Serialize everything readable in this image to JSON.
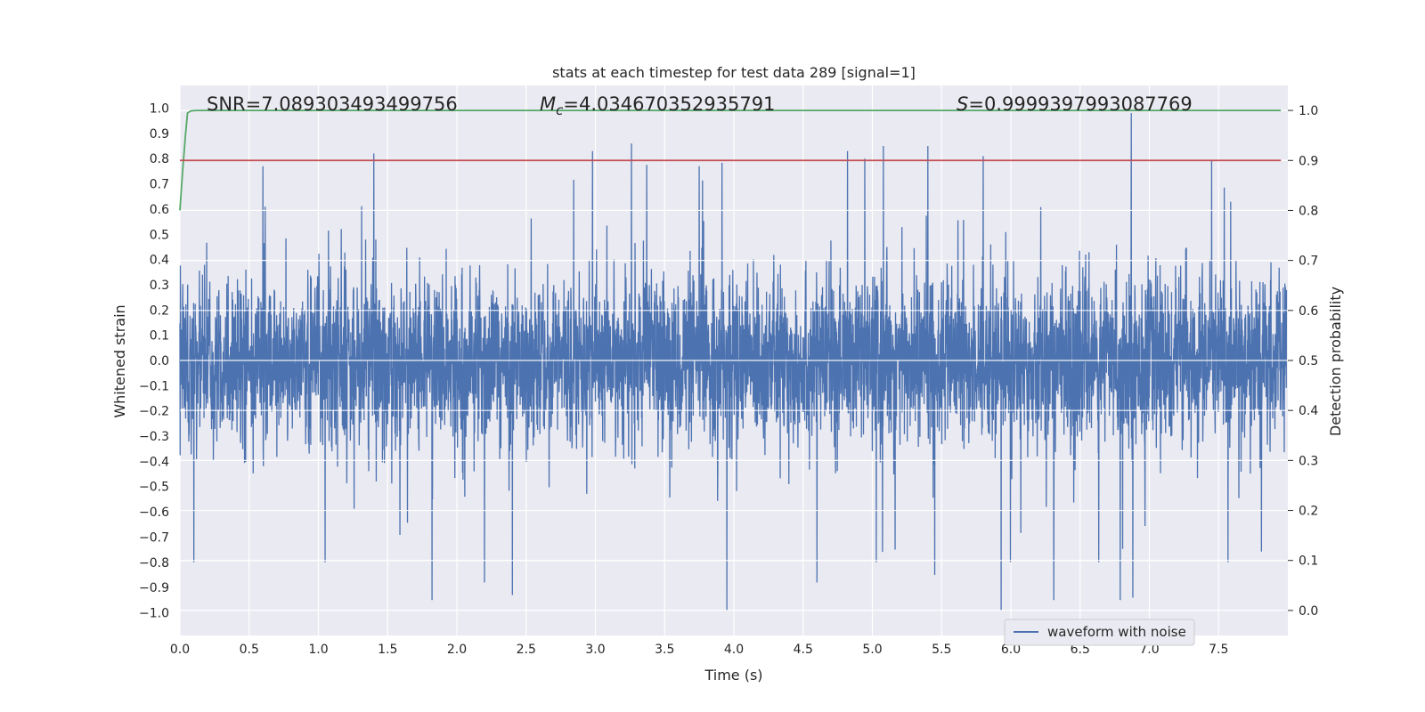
{
  "chart_data": {
    "type": "line",
    "title": "stats at each timestep for test data 289 [signal=1]",
    "xlabel": "Time (s)",
    "ylabel": "Whitened strain",
    "y2label": "Detection probability",
    "xlim": [
      0.0,
      8.0
    ],
    "ylim": [
      -1.09,
      1.09
    ],
    "y2lim": [
      -0.05,
      1.05
    ],
    "x_ticks": [
      0.0,
      0.5,
      1.0,
      1.5,
      2.0,
      2.5,
      3.0,
      3.5,
      4.0,
      4.5,
      5.0,
      5.5,
      6.0,
      6.5,
      7.0,
      7.5
    ],
    "x_tick_labels": [
      "0.0",
      "0.5",
      "1.0",
      "1.5",
      "2.0",
      "2.5",
      "3.0",
      "3.5",
      "4.0",
      "4.5",
      "5.0",
      "5.5",
      "6.0",
      "6.5",
      "7.0",
      "7.5"
    ],
    "y_ticks": [
      1.0,
      0.9,
      0.8,
      0.7,
      0.6,
      0.5,
      0.4,
      0.3,
      0.2,
      0.1,
      0.0,
      -0.1,
      -0.2,
      -0.3,
      -0.4,
      -0.5,
      -0.6,
      -0.7,
      -0.8,
      -0.9,
      -1.0
    ],
    "y_tick_labels": [
      "1.0",
      "0.9",
      "0.8",
      "0.7",
      "0.6",
      "0.5",
      "0.4",
      "0.3",
      "0.2",
      "0.1",
      "0.0",
      "−0.1",
      "−0.2",
      "−0.3",
      "−0.4",
      "−0.5",
      "−0.6",
      "−0.7",
      "−0.8",
      "−0.9",
      "−1.0"
    ],
    "y2_ticks": [
      1.0,
      0.9,
      0.8,
      0.7,
      0.6,
      0.5,
      0.4,
      0.3,
      0.2,
      0.1,
      0.0
    ],
    "y2_tick_labels": [
      "1.0",
      "0.9",
      "0.8",
      "0.7",
      "0.6",
      "0.5",
      "0.4",
      "0.3",
      "0.2",
      "0.1",
      "0.0"
    ],
    "grid": true,
    "legend": {
      "position": "lower-right",
      "entries": [
        "waveform with noise"
      ]
    },
    "annotations": {
      "snr": "SNR=7.089303493499756",
      "mc_symbol": "M",
      "mc_sub": "c",
      "mc_value": "=4.034670352935791",
      "s_symbol": "S",
      "s_value": "=0.9999397993087769"
    },
    "series": [
      {
        "name": "waveform with noise",
        "axis": "left",
        "color": "#4c72b0",
        "x_range": [
          0.0,
          7.99
        ],
        "typical_envelope": [
          -0.45,
          0.45
        ],
        "noise_std": 0.16,
        "peaks": [
          {
            "x": 1.4,
            "y": 0.82
          },
          {
            "x": 2.98,
            "y": 0.83
          },
          {
            "x": 3.26,
            "y": 0.86
          },
          {
            "x": 4.82,
            "y": 0.83
          },
          {
            "x": 5.08,
            "y": 0.85
          },
          {
            "x": 5.4,
            "y": 0.85
          },
          {
            "x": 5.8,
            "y": 0.81
          },
          {
            "x": 6.87,
            "y": 0.98
          },
          {
            "x": 7.45,
            "y": 0.79
          },
          {
            "x": 0.6,
            "y": 0.77
          },
          {
            "x": 3.75,
            "y": 0.77
          },
          {
            "x": 1.82,
            "y": -0.95
          },
          {
            "x": 2.4,
            "y": -0.93
          },
          {
            "x": 3.95,
            "y": -0.99
          },
          {
            "x": 5.93,
            "y": -0.99
          },
          {
            "x": 6.79,
            "y": -0.95
          },
          {
            "x": 6.88,
            "y": -0.94
          },
          {
            "x": 4.6,
            "y": -0.88
          },
          {
            "x": 2.2,
            "y": -0.88
          },
          {
            "x": 6.31,
            "y": -0.95
          },
          {
            "x": 0.1,
            "y": -0.8
          },
          {
            "x": 5.45,
            "y": -0.85
          }
        ]
      },
      {
        "name": "",
        "axis": "right",
        "color": "#55a868",
        "x": [
          0.0,
          0.02,
          0.04,
          0.055,
          0.08,
          0.12,
          1.0,
          2.0,
          3.0,
          4.0,
          5.0,
          6.0,
          7.0,
          7.95
        ],
        "y": [
          0.8,
          0.88,
          0.95,
          0.995,
          0.999,
          1.0,
          1.0,
          1.0,
          1.0,
          1.0,
          1.0,
          1.0,
          1.0,
          1.0
        ]
      },
      {
        "name": "",
        "axis": "right",
        "color": "#c44e52",
        "x": [
          0.0,
          7.95
        ],
        "y": [
          0.9,
          0.9
        ]
      }
    ]
  }
}
